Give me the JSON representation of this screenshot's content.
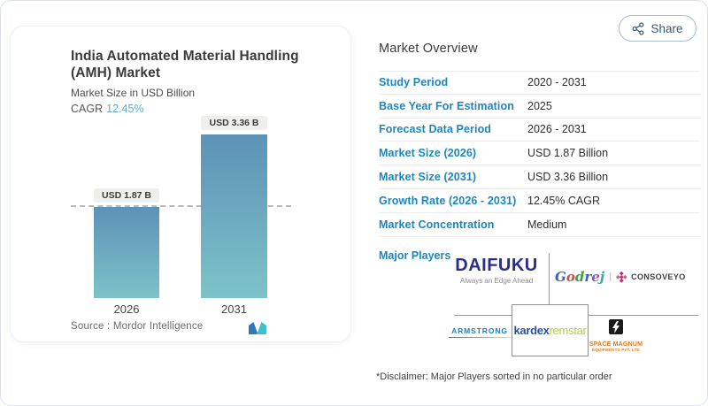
{
  "share": {
    "label": "Share"
  },
  "chart_card": {
    "title_line1": "India Automated Material Handling",
    "title_line2": "(AMH) Market",
    "subtitle": "Market Size in USD Billion",
    "cagr_label": "CAGR",
    "cagr_value": "12.45%",
    "source_label": "Source :  Mordor Intelligence"
  },
  "chart_data": {
    "type": "bar",
    "title": "India Automated Material Handling (AMH) Market",
    "ylabel": "Market Size in USD Billion",
    "categories": [
      "2026",
      "2031"
    ],
    "values": [
      1.87,
      3.36
    ],
    "value_labels": [
      "USD 1.87 B",
      "USD 3.36 B"
    ],
    "unit": "USD Billion",
    "cagr_percent": 12.45,
    "baseline_value": 1.87,
    "grid": "single dashed reference line at first bar top",
    "legend": "none"
  },
  "overview": {
    "title": "Market Overview",
    "rows": [
      {
        "label": "Study Period",
        "value": "2020 - 2031"
      },
      {
        "label": "Base Year For Estimation",
        "value": "2025"
      },
      {
        "label": "Forecast Data Period",
        "value": "2026 - 2031"
      },
      {
        "label": "Market Size (2026)",
        "value": "USD 1.87 Billion"
      },
      {
        "label": "Market Size (2031)",
        "value": "USD 3.36 Billion"
      },
      {
        "label": "Growth Rate (2026 - 2031)",
        "value": "12.45% CAGR"
      },
      {
        "label": "Market Concentration",
        "value": "Medium"
      }
    ],
    "major_players_label": "Major Players",
    "disclaimer": "*Disclaimer: Major Players sorted in no particular order"
  },
  "players": {
    "daifuku": {
      "name": "DAIFUKU",
      "tagline": "Always an Edge Ahead"
    },
    "godrej": {
      "name": "Godrej"
    },
    "consoveyo": {
      "name": "CONSOVEYO"
    },
    "armstrong": {
      "name": "ARMSTRONG"
    },
    "kardex": {
      "name": "kardex",
      "suffix": "remstar"
    },
    "space_magnum": {
      "name": "SPACE MAGNUM",
      "sub": "EQUIPMENTS PVT. LTD"
    }
  },
  "colors": {
    "accent_blue": "#1d86c0",
    "cagr_blue": "#64a9c8",
    "bar_top": "#5d92b6",
    "bar_bottom": "#7cc3c9",
    "share_color": "#3b5877",
    "daifuku_navy": "#2b2e87",
    "kardex_blue": "#24509e",
    "remstar_green": "#b9cc3e",
    "armstrong_blue": "#1e7ec2",
    "magnum_orange": "#e07820",
    "consoveyo_magenta": "#c72c6e"
  }
}
